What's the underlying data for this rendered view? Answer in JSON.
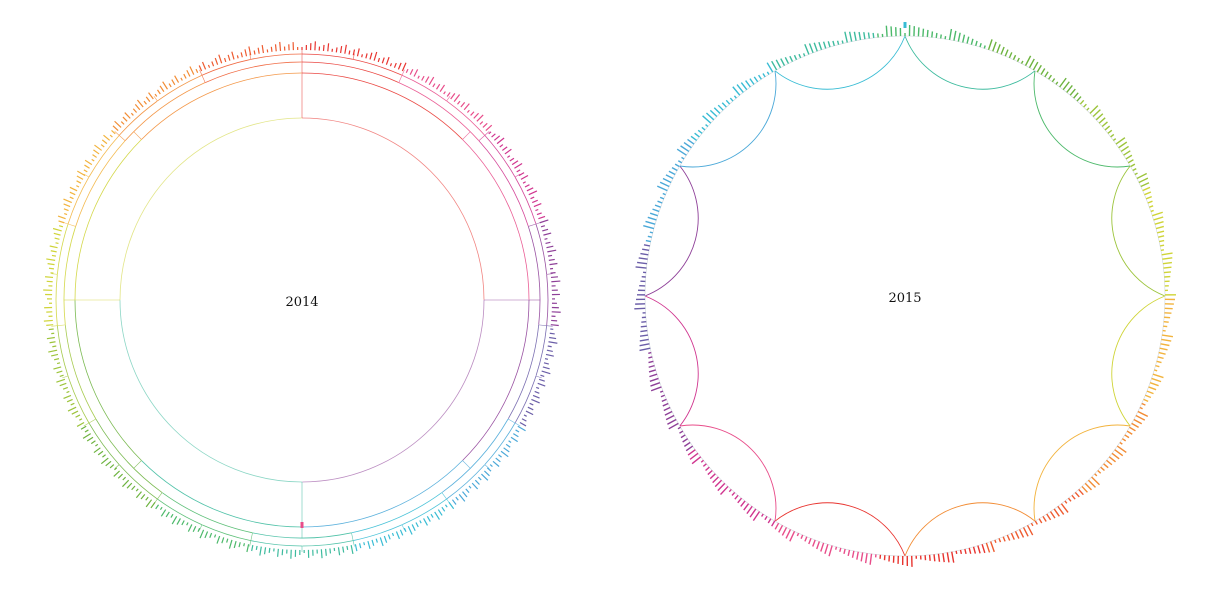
{
  "diagrams": [
    {
      "id": "left",
      "year_label": "2014"
    },
    {
      "id": "right",
      "year_label": "2015"
    }
  ],
  "palette": [
    "#e8342f",
    "#e84d8a",
    "#d0358f",
    "#8e3f98",
    "#6b5ea8",
    "#4aa8d8",
    "#38bcd4",
    "#3dbb9e",
    "#4cb96a",
    "#6db33f",
    "#9cc43b",
    "#cfd437",
    "#f2b33d",
    "#f28c34",
    "#ee5b30"
  ]
}
